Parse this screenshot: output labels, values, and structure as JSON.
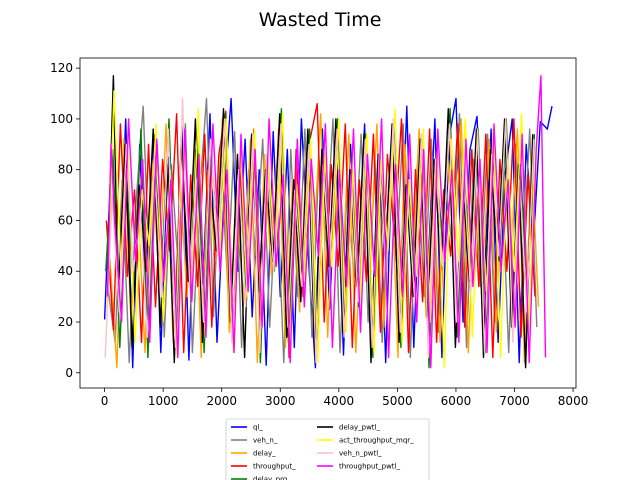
{
  "chart_data": {
    "type": "line",
    "title": "Wasted Time",
    "xlabel": "",
    "ylabel": "",
    "xlim": [
      -420,
      8050
    ],
    "ylim": [
      -6,
      124
    ],
    "xticks": [
      0,
      1000,
      2000,
      3000,
      4000,
      5000,
      6000,
      7000,
      8000
    ],
    "yticks": [
      0,
      20,
      40,
      60,
      80,
      100,
      120
    ],
    "grid": false,
    "legend_placement": "bottom-center",
    "legend_columns": 2,
    "series": [
      {
        "name": "ql_",
        "color": "#0000ff",
        "x": [
          0,
          120,
          240,
          360,
          480,
          600,
          720,
          840,
          960,
          1080,
          1200,
          1320,
          1440,
          1560,
          1680,
          1800,
          1920,
          2040,
          2160,
          2280,
          2400,
          2520,
          2640,
          2760,
          2880,
          3000,
          3120,
          3240,
          3360,
          3480,
          3600,
          3720,
          3840,
          3960,
          4080,
          4200,
          4320,
          4440,
          4560,
          4680,
          4800,
          4920,
          5040,
          5160,
          5280,
          5400,
          5520,
          5640,
          5760,
          5880,
          6000,
          6120,
          6240,
          6360,
          6480,
          6600,
          6720,
          6840,
          6960,
          7080,
          7200,
          7320,
          7440,
          7560,
          7640
        ],
        "y": [
          21,
          88,
          30,
          100,
          2,
          90,
          18,
          94,
          8,
          85,
          20,
          97,
          5,
          88,
          35,
          102,
          12,
          70,
          108,
          40,
          92,
          22,
          80,
          3,
          95,
          30,
          88,
          10,
          100,
          45,
          2,
          96,
          25,
          82,
          7,
          90,
          38,
          98,
          15,
          86,
          4,
          94,
          28,
          105,
          10,
          84,
          40,
          100,
          6,
          92,
          108,
          20,
          88,
          101,
          35,
          96,
          12,
          78,
          100,
          4,
          90,
          50,
          99,
          96,
          105
        ]
      },
      {
        "name": "veh_n_",
        "color": "#808080",
        "x": [
          60,
          180,
          300,
          420,
          540,
          660,
          780,
          900,
          1020,
          1140,
          1260,
          1380,
          1500,
          1620,
          1740,
          1860,
          1980,
          2100,
          2220,
          2340,
          2460,
          2580,
          2700,
          2820,
          2940,
          3060,
          3180,
          3300,
          3420,
          3540,
          3660,
          3780,
          3900,
          4020,
          4140,
          4260,
          4380,
          4500,
          4620,
          4740,
          4860,
          4980,
          5100,
          5220,
          5340,
          5460,
          5580,
          5700,
          5820,
          5940,
          6060,
          6180,
          6300,
          6420,
          6540,
          6660,
          6780,
          6900,
          7020,
          7140,
          7260,
          7380
        ],
        "y": [
          33,
          12,
          76,
          4,
          68,
          105,
          28,
          90,
          14,
          82,
          40,
          98,
          8,
          70,
          108,
          22,
          86,
          36,
          95,
          10,
          80,
          46,
          92,
          18,
          74,
          4,
          88,
          30,
          96,
          14,
          84,
          52,
          100,
          8,
          72,
          38,
          94,
          20,
          86,
          12,
          78,
          44,
          98,
          6,
          82,
          30,
          92,
          16,
          76,
          48,
          102,
          10,
          84,
          34,
          94,
          20,
          80,
          8,
          90,
          42,
          96,
          18
        ]
      },
      {
        "name": "delay_",
        "color": "#ffa500",
        "x": [
          90,
          210,
          330,
          450,
          570,
          690,
          810,
          930,
          1050,
          1170,
          1290,
          1410,
          1530,
          1650,
          1770,
          1890,
          2010,
          2130,
          2250,
          2370,
          2490,
          2610,
          2730,
          2850,
          2970,
          3090,
          3210,
          3330,
          3450,
          3570,
          3690,
          3810,
          3930,
          4050,
          4170,
          4290,
          4410,
          4530,
          4650,
          4770,
          4890,
          5010,
          5130,
          5250,
          5370,
          5490,
          5610,
          5730,
          5850,
          5970,
          6090,
          6210,
          6330,
          6450,
          6570,
          6690,
          6810,
          6930,
          7050,
          7170,
          7290,
          7410
        ],
        "y": [
          45,
          2,
          92,
          20,
          66,
          8,
          84,
          36,
          98,
          12,
          74,
          30,
          90,
          6,
          80,
          44,
          100,
          16,
          70,
          28,
          92,
          4,
          86,
          38,
          96,
          10,
          76,
          24,
          88,
          50,
          102,
          14,
          80,
          32,
          94,
          8,
          72,
          42,
          98,
          18,
          84,
          6,
          90,
          36,
          96,
          22,
          78,
          12,
          88,
          46,
          100,
          8,
          74,
          30,
          92,
          16,
          82,
          40,
          96,
          4,
          86,
          26
        ]
      },
      {
        "name": "throughput_",
        "color": "#ff0000",
        "x": [
          30,
          150,
          270,
          390,
          510,
          630,
          750,
          870,
          990,
          1110,
          1230,
          1350,
          1470,
          1590,
          1710,
          1830,
          1950,
          2070,
          2190,
          2310,
          2430,
          2550,
          2670,
          2790,
          2910,
          3030,
          3150,
          3270,
          3390,
          3510,
          3630,
          3750,
          3870,
          3990,
          4110,
          4230,
          4350,
          4470,
          4590,
          4710,
          4830,
          4950,
          5070,
          5190,
          5310,
          5430,
          5550,
          5670,
          5790,
          5910,
          6030,
          6150,
          6270,
          6390,
          6510,
          6630,
          6750,
          6870,
          6990,
          7110,
          7230,
          7350
        ],
        "y": [
          60,
          17,
          98,
          38,
          72,
          12,
          90,
          26,
          84,
          48,
          102,
          8,
          78,
          34,
          94,
          18,
          86,
          103,
          22,
          80,
          40,
          96,
          14,
          74,
          52,
          100,
          6,
          88,
          30,
          92,
          106,
          20,
          82,
          42,
          98,
          10,
          76,
          36,
          94,
          16,
          86,
          54,
          100,
          8,
          80,
          28,
          96,
          12,
          72,
          46,
          98,
          18,
          88,
          34,
          94,
          6,
          84,
          40,
          100,
          14,
          78,
          30
        ]
      },
      {
        "name": "delay_prg",
        "color": "#008000",
        "x": [
          20,
          140,
          260,
          380,
          500,
          620,
          740,
          860,
          980,
          1100,
          1220,
          1340,
          1460,
          1580,
          1700,
          1820,
          1940,
          2060,
          2180,
          2300,
          2420,
          2540,
          2660,
          2780,
          2900,
          3020,
          3140,
          3260,
          3380,
          3500,
          3620,
          3740,
          3860,
          3980,
          4100,
          4220,
          4340,
          4460,
          4580,
          4700,
          4820,
          4940,
          5060,
          5180,
          5300,
          5420,
          5540,
          5660,
          5780,
          5900,
          6020,
          6140,
          6260,
          6380,
          6500,
          6620,
          6740,
          6860,
          6980,
          7100,
          7220,
          7340
        ],
        "y": [
          40,
          88,
          10,
          76,
          30,
          96,
          6,
          82,
          44,
          100,
          14,
          72,
          36,
          94,
          8,
          86,
          50,
          102,
          18,
          78,
          28,
          92,
          4,
          84,
          40,
          104,
          12,
          74,
          34,
          96,
          8,
          88,
          46,
          100,
          16,
          80,
          26,
          94,
          6,
          86,
          42,
          98,
          10,
          76,
          32,
          92,
          2,
          84,
          48,
          104,
          14,
          78,
          36,
          96,
          8,
          88,
          44,
          100,
          18,
          82,
          30,
          94
        ]
      },
      {
        "name": "delay_pwtl_",
        "color": "#000000",
        "x": [
          70,
          150,
          230,
          350,
          470,
          590,
          710,
          830,
          950,
          1070,
          1190,
          1310,
          1430,
          1550,
          1670,
          1790,
          1910,
          2030,
          2150,
          2270,
          2390,
          2510,
          2630,
          2750,
          2870,
          2990,
          3110,
          3230,
          3350,
          3470,
          3590,
          3710,
          3830,
          3950,
          4070,
          4190,
          4310,
          4430,
          4550,
          4670,
          4790,
          4910,
          5030,
          5150,
          5270,
          5390,
          5510,
          5630,
          5750,
          5870,
          5990,
          6110,
          6230,
          6350,
          6470,
          6590,
          6710,
          6830,
          6950,
          7070,
          7190,
          7310
        ],
        "y": [
          55,
          117,
          30,
          90,
          10,
          74,
          40,
          96,
          18,
          82,
          4,
          92,
          36,
          100,
          12,
          78,
          48,
          104,
          20,
          86,
          6,
          94,
          32,
          80,
          44,
          102,
          14,
          76,
          28,
          96,
          8,
          88,
          42,
          100,
          16,
          80,
          34,
          94,
          4,
          86,
          46,
          98,
          12,
          74,
          30,
          92,
          20,
          84,
          40,
          104,
          10,
          78,
          36,
          96,
          6,
          88,
          44,
          100,
          18,
          82,
          2,
          94
        ]
      },
      {
        "name": "act_throughput_mqr_",
        "color": "#ffff00",
        "x": [
          40,
          160,
          280,
          400,
          520,
          640,
          760,
          880,
          1000,
          1120,
          1240,
          1360,
          1480,
          1600,
          1720,
          1840,
          1960,
          2080,
          2200,
          2320,
          2440,
          2560,
          2680,
          2800,
          2920,
          3040,
          3160,
          3280,
          3400,
          3520,
          3640,
          3760,
          3880,
          4000,
          4120,
          4240,
          4360,
          4480,
          4600,
          4720,
          4840,
          4960,
          5080,
          5200,
          5320,
          5440,
          5560,
          5680,
          5800,
          5920,
          6040,
          6160,
          6280,
          6400,
          6520,
          6640,
          6760,
          6880,
          7000,
          7120,
          7240,
          7360
        ],
        "y": [
          25,
          111,
          40,
          86,
          12,
          72,
          50,
          98,
          20,
          80,
          6,
          94,
          34,
          104,
          14,
          78,
          44,
          100,
          8,
          88,
          30,
          96,
          18,
          82,
          46,
          102,
          10,
          74,
          36,
          92,
          4,
          86,
          42,
          100,
          16,
          80,
          28,
          94,
          8,
          84,
          48,
          104,
          12,
          76,
          38,
          96,
          20,
          88,
          2,
          92,
          44,
          100,
          14,
          80,
          32,
          96,
          6,
          84,
          40,
          102,
          18,
          86
        ]
      },
      {
        "name": "veh_n_pwtl_",
        "color": "#ffc0cb",
        "x": [
          10,
          130,
          250,
          370,
          490,
          610,
          730,
          850,
          970,
          1090,
          1210,
          1330,
          1450,
          1570,
          1690,
          1810,
          1930,
          2050,
          2170,
          2290,
          2410,
          2530,
          2650,
          2770,
          2890,
          3010,
          3130,
          3250,
          3370,
          3490,
          3610,
          3730,
          3850,
          3970,
          4090,
          4210,
          4330,
          4450,
          4570,
          4690,
          4810,
          4930,
          5050,
          5170,
          5290,
          5410,
          5530,
          5650,
          5770,
          5890,
          6010,
          6130,
          6250,
          6370,
          6490,
          6610,
          6730,
          6850,
          6970,
          7090,
          7210,
          7330
        ],
        "y": [
          6,
          70,
          24,
          90,
          40,
          64,
          14,
          84,
          30,
          96,
          10,
          108,
          36,
          76,
          20,
          92,
          46,
          100,
          12,
          80,
          26,
          94,
          8,
          86,
          40,
          98,
          18,
          72,
          34,
          90,
          4,
          82,
          44,
          96,
          14,
          78,
          28,
          92,
          10,
          86,
          38,
          100,
          16,
          74,
          30,
          94,
          6,
          84,
          42,
          98,
          20,
          80,
          32,
          96,
          8,
          86,
          46,
          100,
          12,
          76,
          24,
          92
        ]
      },
      {
        "name": "throughput_pwtl_",
        "color": "#ff00ff",
        "x": [
          50,
          110,
          170,
          290,
          410,
          530,
          650,
          770,
          890,
          1010,
          1130,
          1250,
          1370,
          1490,
          1610,
          1730,
          1850,
          1970,
          2090,
          2210,
          2330,
          2450,
          2570,
          2690,
          2810,
          2930,
          3050,
          3170,
          3290,
          3410,
          3530,
          3650,
          3770,
          3890,
          4010,
          4130,
          4250,
          4370,
          4490,
          4610,
          4730,
          4850,
          4970,
          5090,
          5210,
          5330,
          5450,
          5570,
          5690,
          5810,
          5930,
          6050,
          6170,
          6290,
          6410,
          6530,
          6650,
          6770,
          6890,
          7010,
          7130,
          7250,
          7370,
          7450,
          7530
        ],
        "y": [
          30,
          90,
          60,
          20,
          100,
          44,
          84,
          12,
          92,
          36,
          76,
          6,
          96,
          28,
          86,
          14,
          98,
          40,
          80,
          8,
          94,
          32,
          88,
          18,
          100,
          42,
          78,
          4,
          92,
          26,
          84,
          46,
          98,
          10,
          80,
          34,
          96,
          16,
          86,
          38,
          100,
          6,
          82,
          30,
          94,
          20,
          88,
          2,
          96,
          44,
          80,
          12,
          92,
          34,
          84,
          8,
          98,
          40,
          76,
          18,
          94,
          4,
          88,
          117,
          6
        ]
      }
    ]
  }
}
